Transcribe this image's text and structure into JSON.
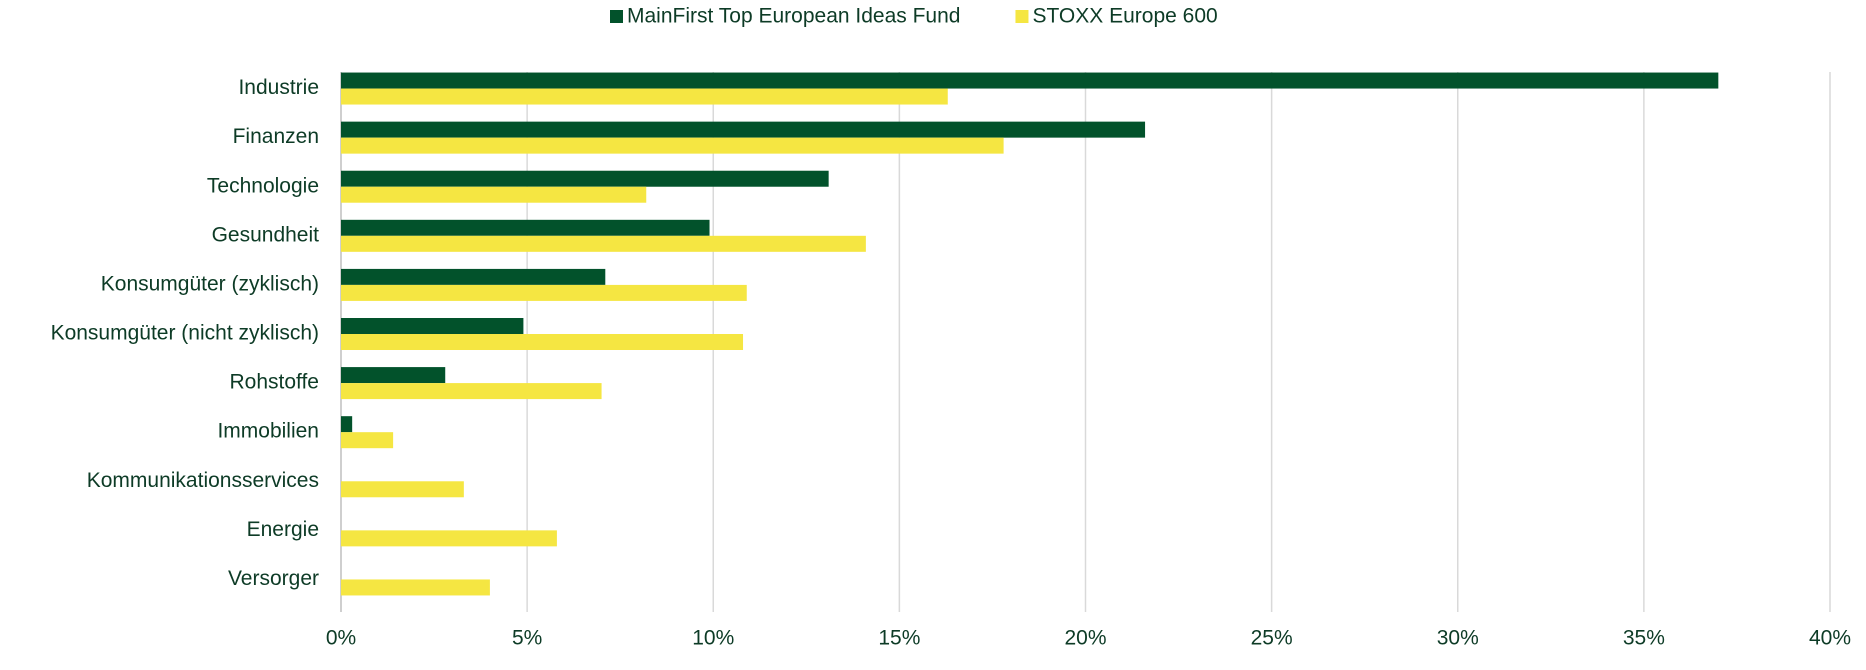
{
  "chart_data": {
    "type": "barh",
    "categories": [
      "Industrie",
      "Finanzen",
      "Technologie",
      "Gesundheit",
      "Konsumgüter (zyklisch)",
      "Konsumgüter (nicht zyklisch)",
      "Rohstoffe",
      "Immobilien",
      "Kommunikationsservices",
      "Energie",
      "Versorger"
    ],
    "series": [
      {
        "name": "MainFirst Top European Ideas Fund",
        "color": "#02522b",
        "values": [
          37.0,
          21.6,
          13.1,
          9.9,
          7.1,
          4.9,
          2.8,
          0.3,
          0,
          0,
          0
        ]
      },
      {
        "name": "STOXX Europe 600",
        "color": "#f5e642",
        "values": [
          16.3,
          17.8,
          8.2,
          14.1,
          10.9,
          10.8,
          7.0,
          1.4,
          3.3,
          5.8,
          4.0
        ]
      }
    ],
    "xlim": [
      0,
      40
    ],
    "xticks": [
      {
        "value": 0,
        "label": "0%"
      },
      {
        "value": 5,
        "label": "5%"
      },
      {
        "value": 10,
        "label": "10%"
      },
      {
        "value": 15,
        "label": "15%"
      },
      {
        "value": 20,
        "label": "20%"
      },
      {
        "value": 25,
        "label": "25%"
      },
      {
        "value": 30,
        "label": "30%"
      },
      {
        "value": 35,
        "label": "35%"
      },
      {
        "value": 40,
        "label": "40%"
      }
    ],
    "grid": true,
    "legend": "top"
  }
}
